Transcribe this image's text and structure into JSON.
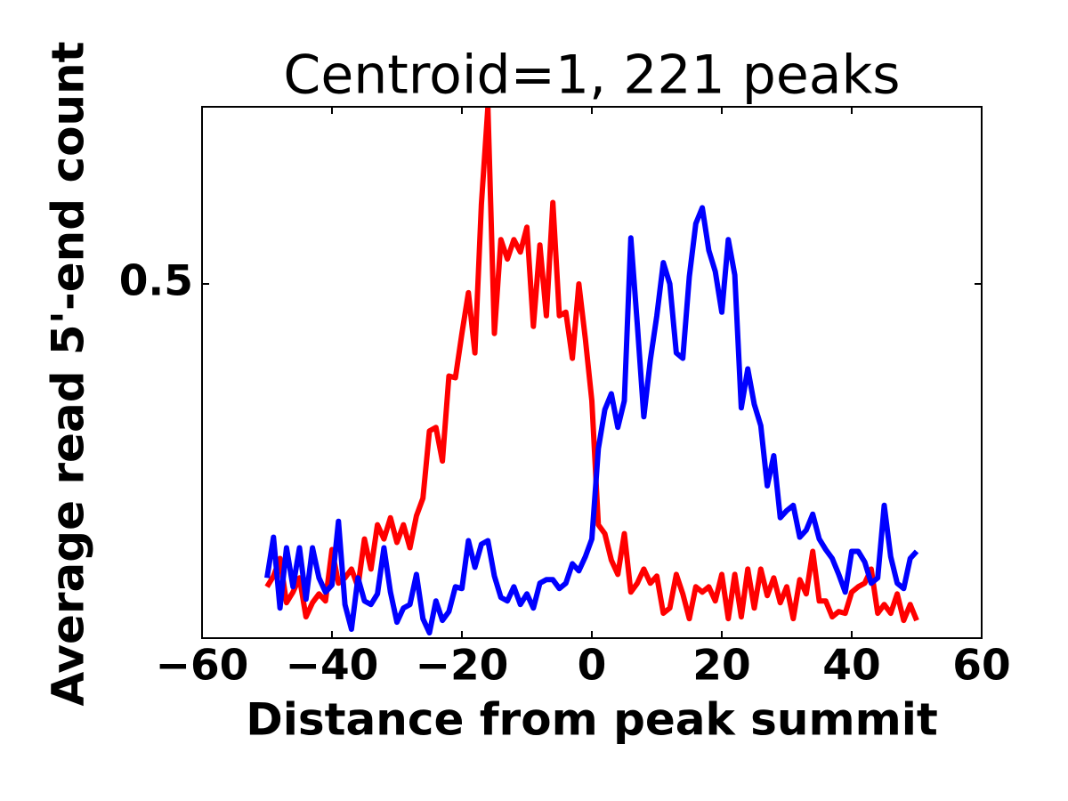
{
  "chart_data": {
    "type": "line",
    "title": "Centroid=1, 221 peaks",
    "x_label": "Distance from peak summit",
    "y_label": "Average read 5'-end count",
    "x": [
      -50,
      -49,
      -48,
      -47,
      -46,
      -45,
      -44,
      -43,
      -42,
      -41,
      -40,
      -39,
      -38,
      -37,
      -36,
      -35,
      -34,
      -33,
      -32,
      -31,
      -30,
      -29,
      -28,
      -27,
      -26,
      -25,
      -24,
      -23,
      -22,
      -21,
      -20,
      -19,
      -18,
      -17,
      -16,
      -15,
      -14,
      -13,
      -12,
      -11,
      -10,
      -9,
      -8,
      -7,
      -6,
      -5,
      -4,
      -3,
      -2,
      -1,
      0,
      1,
      2,
      3,
      4,
      5,
      6,
      7,
      8,
      9,
      10,
      11,
      12,
      13,
      14,
      15,
      16,
      17,
      18,
      19,
      20,
      21,
      22,
      23,
      24,
      25,
      26,
      27,
      28,
      29,
      30,
      31,
      32,
      33,
      34,
      35,
      36,
      37,
      38,
      39,
      40,
      41,
      42,
      43,
      44,
      45,
      46,
      47,
      48,
      49,
      50
    ],
    "series": [
      {
        "name": "red",
        "color": "#ff0000",
        "values": [
          0.329,
          0.335,
          0.345,
          0.32,
          0.326,
          0.334,
          0.312,
          0.32,
          0.325,
          0.321,
          0.35,
          0.331,
          0.334,
          0.339,
          0.329,
          0.356,
          0.339,
          0.364,
          0.356,
          0.368,
          0.354,
          0.364,
          0.351,
          0.369,
          0.379,
          0.417,
          0.419,
          0.4,
          0.448,
          0.447,
          0.472,
          0.495,
          0.461,
          0.545,
          0.6,
          0.472,
          0.525,
          0.514,
          0.525,
          0.518,
          0.532,
          0.476,
          0.522,
          0.482,
          0.546,
          0.482,
          0.484,
          0.458,
          0.5,
          0.469,
          0.434,
          0.364,
          0.359,
          0.344,
          0.336,
          0.359,
          0.326,
          0.331,
          0.339,
          0.331,
          0.335,
          0.314,
          0.317,
          0.336,
          0.325,
          0.311,
          0.329,
          0.326,
          0.329,
          0.321,
          0.336,
          0.311,
          0.336,
          0.312,
          0.339,
          0.317,
          0.339,
          0.324,
          0.334,
          0.32,
          0.329,
          0.311,
          0.333,
          0.325,
          0.349,
          0.321,
          0.321,
          0.312,
          0.315,
          0.314,
          0.326,
          0.329,
          0.331,
          0.339,
          0.314,
          0.319,
          0.314,
          0.325,
          0.31,
          0.319,
          0.31
        ]
      },
      {
        "name": "blue",
        "color": "#0000ff",
        "values": [
          0.334,
          0.357,
          0.317,
          0.351,
          0.329,
          0.351,
          0.322,
          0.351,
          0.334,
          0.326,
          0.33,
          0.366,
          0.319,
          0.305,
          0.334,
          0.321,
          0.319,
          0.325,
          0.351,
          0.326,
          0.309,
          0.317,
          0.319,
          0.336,
          0.311,
          0.303,
          0.321,
          0.31,
          0.315,
          0.329,
          0.328,
          0.355,
          0.34,
          0.353,
          0.355,
          0.335,
          0.323,
          0.321,
          0.329,
          0.319,
          0.325,
          0.317,
          0.331,
          0.333,
          0.333,
          0.328,
          0.331,
          0.342,
          0.338,
          0.346,
          0.356,
          0.407,
          0.429,
          0.438,
          0.419,
          0.434,
          0.526,
          0.477,
          0.425,
          0.457,
          0.482,
          0.512,
          0.5,
          0.461,
          0.458,
          0.504,
          0.534,
          0.543,
          0.519,
          0.507,
          0.484,
          0.525,
          0.505,
          0.43,
          0.452,
          0.432,
          0.42,
          0.386,
          0.403,
          0.368,
          0.372,
          0.375,
          0.357,
          0.361,
          0.37,
          0.356,
          0.35,
          0.345,
          0.336,
          0.326,
          0.349,
          0.349,
          0.343,
          0.331,
          0.334,
          0.375,
          0.346,
          0.331,
          0.328,
          0.345,
          0.349
        ]
      }
    ],
    "xlim": [
      -60,
      60
    ],
    "ylim": [
      0.3,
      0.6
    ],
    "xticks": [
      {
        "value": -60,
        "label": "−60"
      },
      {
        "value": -40,
        "label": "−40"
      },
      {
        "value": -20,
        "label": "−20"
      },
      0,
      20,
      40,
      60
    ],
    "yticks": [
      0.5
    ]
  }
}
